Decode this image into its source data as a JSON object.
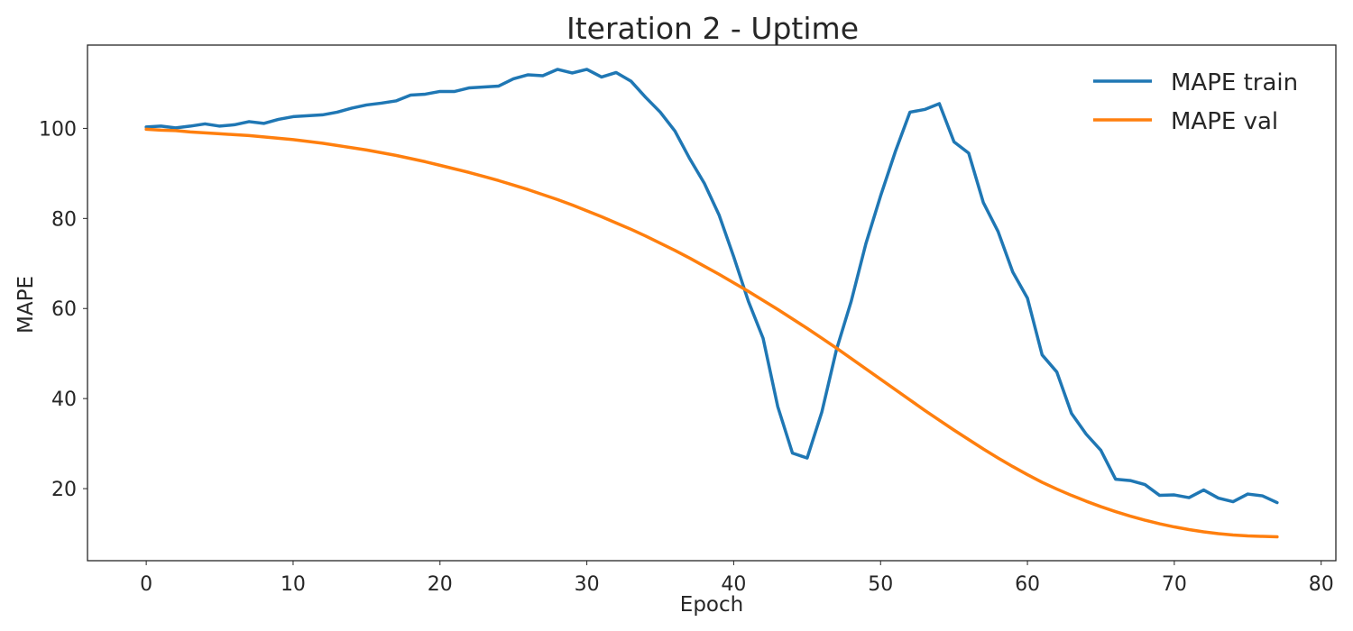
{
  "chart_data": {
    "type": "line",
    "title": "Iteration 2 - Uptime",
    "xlabel": "Epoch",
    "ylabel": "MAPE",
    "xlim": [
      -4,
      81
    ],
    "ylim": [
      4,
      118.5
    ],
    "xticks": [
      0,
      10,
      20,
      30,
      40,
      50,
      60,
      70,
      80
    ],
    "yticks": [
      20,
      40,
      60,
      80,
      100
    ],
    "grid": false,
    "legend_position": "top-right",
    "series": [
      {
        "name": "MAPE train",
        "color": "#1f77b4",
        "values": [
          100.3,
          100.5,
          100.1,
          100.5,
          101.0,
          100.5,
          100.8,
          101.5,
          101.1,
          102.0,
          102.6,
          102.8,
          103.0,
          103.6,
          104.5,
          105.2,
          105.6,
          106.1,
          107.4,
          107.6,
          108.2,
          108.2,
          109.0,
          109.2,
          109.4,
          111.0,
          111.9,
          111.7,
          113.1,
          112.3,
          113.1,
          111.4,
          112.4,
          110.5,
          106.9,
          103.6,
          99.4,
          93.3,
          87.8,
          80.8,
          71.5,
          61.6,
          53.4,
          38.2,
          27.9,
          26.8,
          37.0,
          50.9,
          61.6,
          74.4,
          85.0,
          94.8,
          103.6,
          104.2,
          105.5,
          97.0,
          94.5,
          83.5,
          77.1,
          68.1,
          62.3,
          49.7,
          45.9,
          36.7,
          32.1,
          28.5,
          22.1,
          21.8,
          20.9,
          18.5,
          18.6,
          18.0,
          19.7,
          17.9,
          17.1,
          18.8,
          18.4,
          16.9
        ]
      },
      {
        "name": "MAPE val",
        "color": "#ff7f0e",
        "values": [
          99.8,
          99.6,
          99.5,
          99.2,
          99.0,
          98.8,
          98.6,
          98.4,
          98.1,
          97.8,
          97.5,
          97.1,
          96.7,
          96.2,
          95.7,
          95.2,
          94.6,
          94.0,
          93.3,
          92.6,
          91.8,
          91.0,
          90.2,
          89.3,
          88.4,
          87.4,
          86.4,
          85.3,
          84.2,
          83.0,
          81.7,
          80.4,
          79.0,
          77.6,
          76.1,
          74.5,
          72.9,
          71.2,
          69.4,
          67.6,
          65.7,
          63.8,
          61.8,
          59.8,
          57.7,
          55.6,
          53.4,
          51.2,
          48.9,
          46.6,
          44.3,
          42.0,
          39.7,
          37.4,
          35.2,
          33.0,
          30.9,
          28.8,
          26.8,
          24.9,
          23.1,
          21.4,
          19.9,
          18.5,
          17.2,
          16.0,
          14.9,
          13.9,
          13.0,
          12.2,
          11.5,
          10.9,
          10.4,
          10.0,
          9.7,
          9.5,
          9.4,
          9.3
        ]
      }
    ]
  }
}
